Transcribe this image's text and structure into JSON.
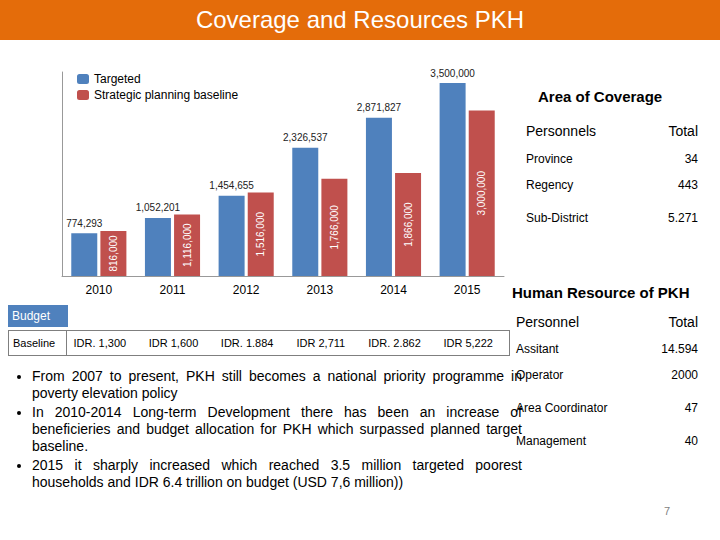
{
  "title": "Coverage and Resources PKH",
  "chart_data": {
    "type": "bar",
    "categories": [
      "2010",
      "2011",
      "2012",
      "2013",
      "2014",
      "2015"
    ],
    "series": [
      {
        "name": "Targeted",
        "color": "#4F81BD",
        "values": [
          774293,
          1052201,
          1454655,
          2326537,
          2871827,
          3500000
        ],
        "value_labels": [
          "774,293",
          "1,052,201",
          "1,454,655",
          "2,326,537",
          "2,871,827",
          "3,500,000"
        ]
      },
      {
        "name": "Strategic planning baseline",
        "color": "#C0504D",
        "values": [
          816000,
          1116000,
          1516000,
          1766000,
          1866000,
          3000000
        ],
        "value_labels": [
          "816,000",
          "1,116,000",
          "1,516,000",
          "1,766,000",
          "1,866,000",
          "3,000,000"
        ]
      }
    ],
    "ylim": [
      0,
      3700000
    ],
    "grid": false,
    "legend": "top-left",
    "data_labels": true,
    "tick_labels": "x"
  },
  "budget": {
    "header": "Budget",
    "label": "Baseline",
    "values": [
      "IDR. 1,300",
      "IDR 1,600",
      "IDR. 1.884",
      "IDR 2,711",
      "IDR. 2.862",
      "IDR 5,222"
    ]
  },
  "bullets": [
    "From 2007 to present, PKH still becomes a national priority programme in poverty elevation policy",
    "In 2010-2014 Long-term Development  there has been an increase of beneficieries and budget allocation for PKH which surpassed planned target baseline.",
    "2015 it sharply increased which reached 3.5 million targeted poorest households and IDR 6.4 trillion on budget (USD 7,6 million))"
  ],
  "area_of_coverage": {
    "title": "Area of Coverage",
    "header": [
      "Personnels",
      "Total"
    ],
    "rows": [
      [
        "Province",
        "34"
      ],
      [
        "Regency",
        "443"
      ],
      [
        "Sub-District",
        "5.271"
      ]
    ]
  },
  "human_resource": {
    "title": "Human Resource of PKH",
    "header": [
      "Personnel",
      "Total"
    ],
    "rows": [
      [
        "Assitant",
        "14.594"
      ],
      [
        "Operator",
        "2000"
      ],
      [
        "Area Coordinator",
        "47"
      ],
      [
        "Management",
        "40"
      ]
    ]
  },
  "page_number": "7"
}
